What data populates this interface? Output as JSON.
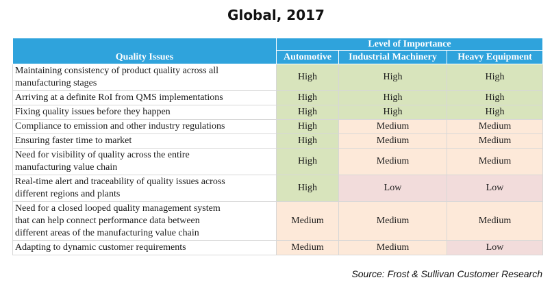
{
  "title": "Global, 2017",
  "table": {
    "group_header": "Level of Importance",
    "issues_header": "Quality Issues",
    "columns": [
      "Automotive",
      "Industrial Machinery",
      "Heavy Equipment"
    ],
    "rows": [
      {
        "issue_lines": [
          "Maintaining consistency of product quality across all",
          "manufacturing stages"
        ],
        "levels": [
          "High",
          "High",
          "High"
        ]
      },
      {
        "issue_lines": [
          "Arriving at a definite RoI from QMS implementations"
        ],
        "levels": [
          "High",
          "High",
          "High"
        ]
      },
      {
        "issue_lines": [
          "Fixing quality issues before they happen"
        ],
        "levels": [
          "High",
          "High",
          "High"
        ]
      },
      {
        "issue_lines": [
          "Compliance to emission and other industry  regulations"
        ],
        "levels": [
          "High",
          "Medium",
          "Medium"
        ]
      },
      {
        "issue_lines": [
          "Ensuring faster time to market"
        ],
        "levels": [
          "High",
          "Medium",
          "Medium"
        ]
      },
      {
        "issue_lines": [
          "Need for visibility of quality across the  entire",
          "manufacturing value chain"
        ],
        "levels": [
          "High",
          "Medium",
          "Medium"
        ]
      },
      {
        "issue_lines": [
          "Real-time alert and traceability of quality issues across",
          "different regions and plants"
        ],
        "levels": [
          "High",
          "Low",
          "Low"
        ]
      },
      {
        "issue_lines": [
          "Need for a closed looped quality management system",
          "that can help connect performance data between",
          "different areas of the manufacturing value chain"
        ],
        "levels": [
          "Medium",
          "Medium",
          "Medium"
        ]
      },
      {
        "issue_lines": [
          "Adapting to dynamic customer requirements"
        ],
        "levels": [
          "Medium",
          "Medium",
          "Low"
        ]
      }
    ]
  },
  "colors": {
    "header_bg": "#2fa3dc",
    "high_bg": "#d8e4bc",
    "medium_bg": "#fde9d9",
    "low_bg": "#f2dcdb"
  },
  "source": "Source: Frost & Sullivan Customer Research"
}
